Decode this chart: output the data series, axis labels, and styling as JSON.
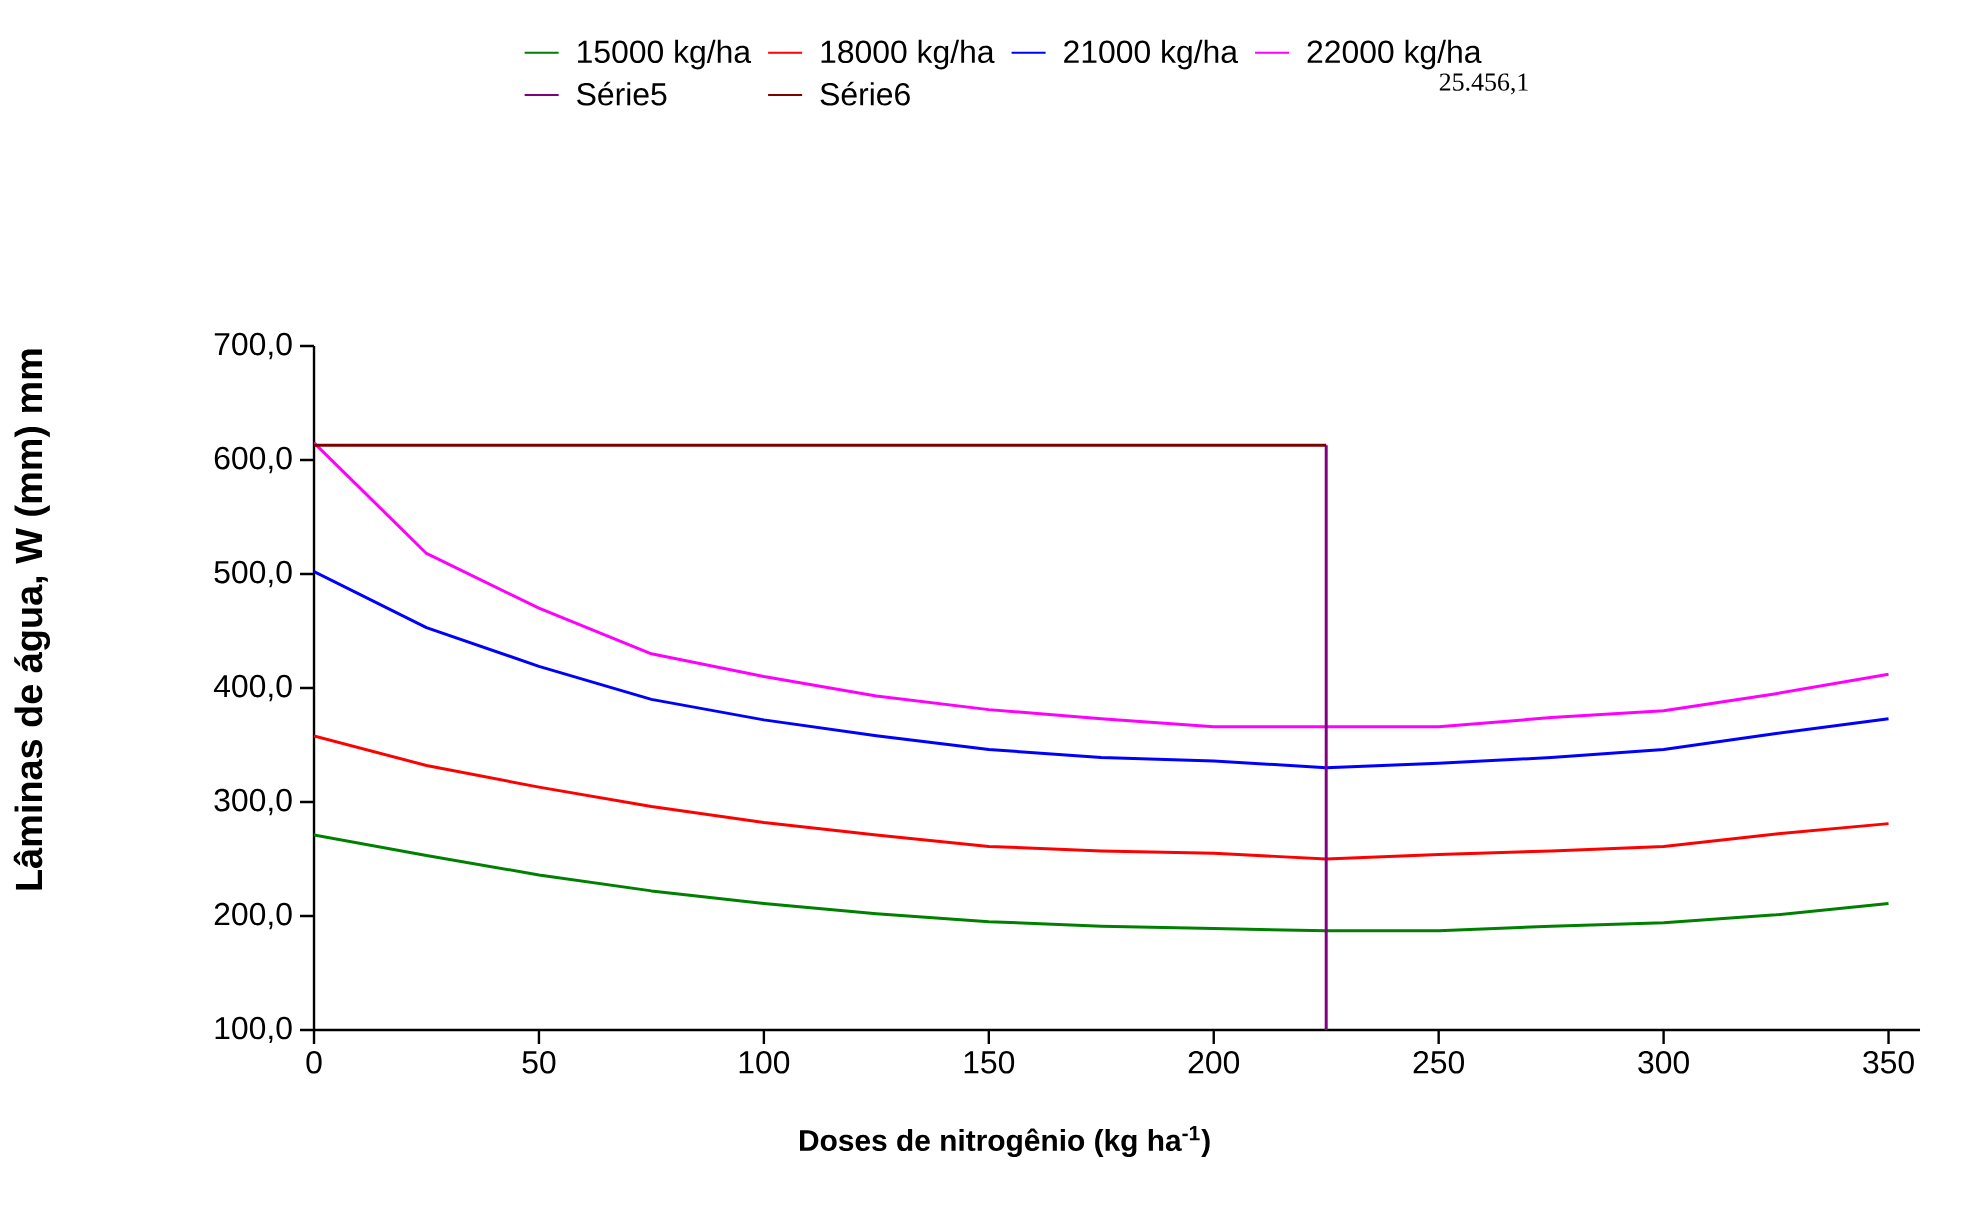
{
  "chart_data": {
    "type": "line",
    "xlabel": "Doses de nitrogênio (kg ha$^{-1}$)",
    "ylabel": "Lâminas de água, W (mm) mm",
    "annotations": [
      "25.456,1"
    ],
    "xlim": [
      0,
      357
    ],
    "xticks": [
      0,
      50,
      100,
      150,
      200,
      250,
      300,
      350
    ],
    "ylim": [
      100,
      700
    ],
    "yticks": [
      {
        "value": 100,
        "label": "100,0"
      },
      {
        "value": 200,
        "label": "200,0"
      },
      {
        "value": 300,
        "label": "300,0"
      },
      {
        "value": 400,
        "label": "400,0"
      },
      {
        "value": 500,
        "label": "500,0"
      },
      {
        "value": 600,
        "label": "600,0"
      },
      {
        "value": 700,
        "label": "700,0"
      }
    ],
    "x": [
      0,
      25,
      50,
      75,
      100,
      125,
      150,
      175,
      200,
      225,
      250,
      275,
      300,
      325,
      350
    ],
    "legend": "top",
    "marker": "none",
    "line_style": "solid",
    "series": [
      {
        "name": "15000 kg/ha",
        "color": "#008000",
        "values": [
          271,
          253,
          236,
          222,
          211,
          202,
          195,
          191,
          189,
          187,
          187,
          191,
          194,
          201,
          211
        ]
      },
      {
        "name": "18000 kg/ha",
        "color": "#ff0000",
        "values": [
          358,
          332,
          313,
          296,
          282,
          271,
          261,
          257,
          255,
          250,
          254,
          257,
          261,
          272,
          281
        ]
      },
      {
        "name": "21000 kg/ha",
        "color": "#0000ff",
        "values": [
          502,
          453,
          419,
          390,
          372,
          358,
          346,
          339,
          336,
          330,
          334,
          339,
          346,
          360,
          373
        ]
      },
      {
        "name": "22000 kg/ha",
        "color": "#ff00ff",
        "values": [
          615,
          518,
          470,
          430,
          410,
          393,
          381,
          373,
          366,
          366,
          366,
          374,
          380,
          395,
          412
        ]
      },
      {
        "name": "Série5",
        "color": "#800080",
        "x": [
          225,
          225
        ],
        "values": [
          100,
          613
        ]
      },
      {
        "name": "Série6",
        "color": "#800000",
        "values": [
          613,
          613,
          613,
          613,
          613,
          613,
          613,
          613,
          613,
          613,
          null,
          null,
          null,
          null,
          null
        ]
      }
    ]
  }
}
